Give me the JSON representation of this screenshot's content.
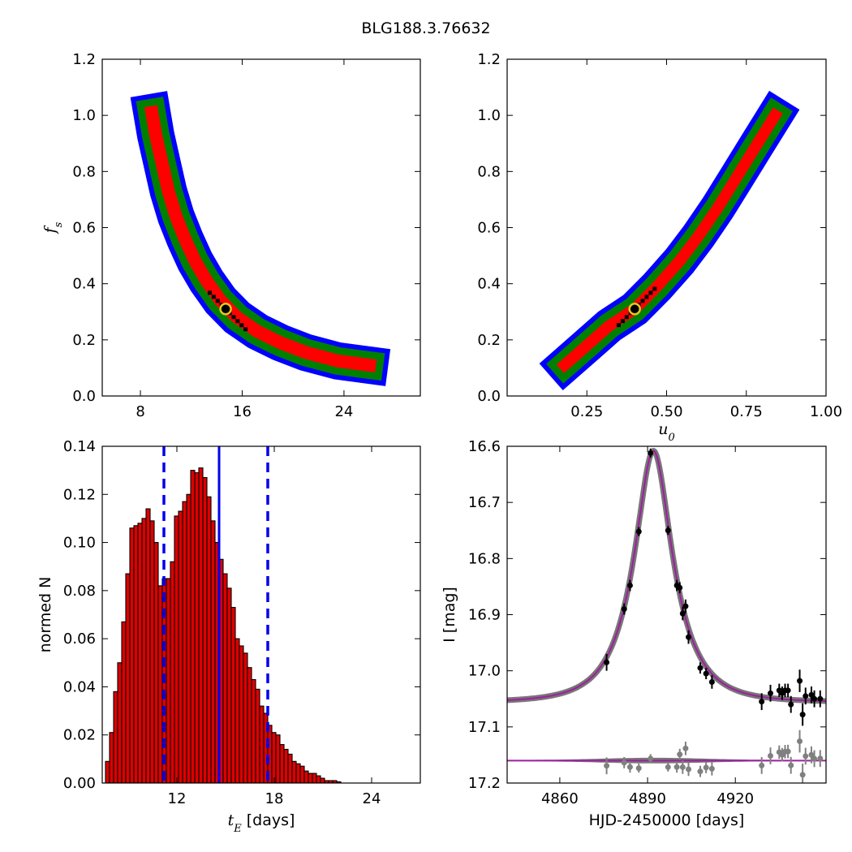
{
  "figure": {
    "title": "BLG188.3.76632"
  },
  "colors": {
    "sigma3": "#0000ff",
    "sigma2": "#008000",
    "sigma1": "#ff0000",
    "best": "#000000",
    "marker_edge": "#e3c81f",
    "hist_bar": "#dd0000",
    "hist_line": "#0000ee",
    "model": "#a01ea0",
    "band": "#777777",
    "residual": "#808080"
  },
  "chart_data": [
    {
      "id": "fs_vs_te",
      "type": "heatmap",
      "xlabel": "",
      "ylabel": "f",
      "ylabel_sub": "s",
      "xlim": [
        5,
        30
      ],
      "ylim": [
        0.0,
        1.2
      ],
      "xticks": [
        "8",
        "16",
        "24"
      ],
      "xtick_values": [
        8,
        16,
        24
      ],
      "yticks": [
        "0.0",
        "0.2",
        "0.4",
        "0.6",
        "0.8",
        "1.0",
        "1.2"
      ],
      "ytick_values": [
        0.0,
        0.2,
        0.4,
        0.6,
        0.8,
        1.0,
        1.2
      ],
      "ridge": [
        [
          8.9,
          1.01
        ],
        [
          9.2,
          0.93
        ],
        [
          9.7,
          0.83
        ],
        [
          10.2,
          0.73
        ],
        [
          10.8,
          0.64
        ],
        [
          11.5,
          0.56
        ],
        [
          12.3,
          0.48
        ],
        [
          13.2,
          0.41
        ],
        [
          14.3,
          0.34
        ],
        [
          15.6,
          0.28
        ],
        [
          17.2,
          0.23
        ],
        [
          19.0,
          0.19
        ],
        [
          21.0,
          0.155
        ],
        [
          23.5,
          0.125
        ],
        [
          26.0,
          0.11
        ]
      ],
      "best": [
        14.7,
        0.31
      ]
    },
    {
      "id": "fs_vs_u0",
      "type": "heatmap",
      "xlabel": "u",
      "xlabel_sub": "0",
      "ylabel": "",
      "xlim": [
        0.0,
        1.0
      ],
      "ylim": [
        0.0,
        1.2
      ],
      "xticks": [
        "0.25",
        "0.50",
        "0.75",
        "1.00"
      ],
      "xtick_values": [
        0.25,
        0.5,
        0.75,
        1.0
      ],
      "yticks": [
        "0.0",
        "0.2",
        "0.4",
        "0.6",
        "0.8",
        "1.0",
        "1.2"
      ],
      "ytick_values": [
        0.0,
        0.2,
        0.4,
        0.6,
        0.8,
        1.0,
        1.2
      ],
      "ridge": [
        [
          0.18,
          0.11
        ],
        [
          0.25,
          0.18
        ],
        [
          0.32,
          0.25
        ],
        [
          0.4,
          0.31
        ],
        [
          0.47,
          0.39
        ],
        [
          0.54,
          0.48
        ],
        [
          0.6,
          0.57
        ],
        [
          0.66,
          0.67
        ],
        [
          0.72,
          0.78
        ],
        [
          0.78,
          0.89
        ],
        [
          0.84,
          1.0
        ]
      ],
      "best": [
        0.4,
        0.31
      ]
    },
    {
      "id": "te_histogram",
      "type": "bar",
      "xlabel": "t",
      "xlabel_sub": "E",
      "xlabel_suffix": " [days]",
      "ylabel": "normed N",
      "xlim": [
        7.4,
        27.0
      ],
      "ylim": [
        0.0,
        0.14
      ],
      "bin_start": 7.6,
      "bin_width": 0.25,
      "values": [
        0.009,
        0.021,
        0.038,
        0.05,
        0.067,
        0.087,
        0.106,
        0.107,
        0.108,
        0.11,
        0.114,
        0.109,
        0.1,
        0.082,
        0.085,
        0.085,
        0.092,
        0.111,
        0.113,
        0.117,
        0.12,
        0.13,
        0.129,
        0.131,
        0.127,
        0.119,
        0.109,
        0.1,
        0.093,
        0.087,
        0.081,
        0.073,
        0.06,
        0.057,
        0.054,
        0.048,
        0.043,
        0.039,
        0.032,
        0.029,
        0.024,
        0.021,
        0.02,
        0.016,
        0.014,
        0.012,
        0.009,
        0.008,
        0.007,
        0.005,
        0.004,
        0.004,
        0.003,
        0.002,
        0.001,
        0.001,
        0.001,
        0.0005
      ],
      "xticks": [
        "12",
        "18",
        "24"
      ],
      "xtick_values": [
        12,
        18,
        24
      ],
      "yticks": [
        "0.00",
        "0.02",
        "0.04",
        "0.06",
        "0.08",
        "0.10",
        "0.12",
        "0.14"
      ],
      "ytick_values": [
        0.0,
        0.02,
        0.04,
        0.06,
        0.08,
        0.1,
        0.12,
        0.14
      ],
      "median": 14.6,
      "lower": 11.2,
      "upper": 17.6
    },
    {
      "id": "light_curve",
      "type": "scatter",
      "xlabel": "HJD-2450000 [days]",
      "ylabel": "I [mag]",
      "xlim": [
        4842,
        4951
      ],
      "ylim": [
        17.2,
        16.6
      ],
      "xticks": [
        "4860",
        "4890",
        "4920"
      ],
      "xtick_values": [
        4860,
        4890,
        4920
      ],
      "yticks": [
        "16.6",
        "16.7",
        "16.8",
        "16.9",
        "17.0",
        "17.1",
        "17.2"
      ],
      "ytick_values": [
        16.6,
        16.7,
        16.8,
        16.9,
        17.0,
        17.1,
        17.2
      ],
      "model": {
        "t0": 4892,
        "u0": 0.4,
        "tE": 14.7,
        "fs": 0.31,
        "base": 17.056
      },
      "residual_offset": 17.16,
      "points": [
        {
          "t": 4876,
          "mag": 16.985,
          "err": 0.015
        },
        {
          "t": 4882,
          "mag": 16.89,
          "err": 0.01
        },
        {
          "t": 4884,
          "mag": 16.848,
          "err": 0.01
        },
        {
          "t": 4887,
          "mag": 16.752,
          "err": 0.008
        },
        {
          "t": 4891,
          "mag": 16.612,
          "err": 0.008
        },
        {
          "t": 4897,
          "mag": 16.75,
          "err": 0.008
        },
        {
          "t": 4900,
          "mag": 16.848,
          "err": 0.01
        },
        {
          "t": 4901,
          "mag": 16.852,
          "err": 0.01
        },
        {
          "t": 4902,
          "mag": 16.898,
          "err": 0.012
        },
        {
          "t": 4903,
          "mag": 16.885,
          "err": 0.012
        },
        {
          "t": 4904,
          "mag": 16.94,
          "err": 0.012
        },
        {
          "t": 4908,
          "mag": 16.995,
          "err": 0.01
        },
        {
          "t": 4910,
          "mag": 17.005,
          "err": 0.01
        },
        {
          "t": 4912,
          "mag": 17.02,
          "err": 0.012
        },
        {
          "t": 4929,
          "mag": 17.055,
          "err": 0.015
        },
        {
          "t": 4932,
          "mag": 17.04,
          "err": 0.015
        },
        {
          "t": 4935,
          "mag": 17.035,
          "err": 0.012
        },
        {
          "t": 4936,
          "mag": 17.04,
          "err": 0.012
        },
        {
          "t": 4937,
          "mag": 17.035,
          "err": 0.012
        },
        {
          "t": 4938,
          "mag": 17.035,
          "err": 0.012
        },
        {
          "t": 4939,
          "mag": 17.06,
          "err": 0.015
        },
        {
          "t": 4942,
          "mag": 17.018,
          "err": 0.02
        },
        {
          "t": 4943,
          "mag": 17.078,
          "err": 0.02
        },
        {
          "t": 4944,
          "mag": 17.045,
          "err": 0.015
        },
        {
          "t": 4946,
          "mag": 17.043,
          "err": 0.015
        },
        {
          "t": 4947,
          "mag": 17.05,
          "err": 0.015
        },
        {
          "t": 4949,
          "mag": 17.05,
          "err": 0.015
        }
      ]
    }
  ]
}
